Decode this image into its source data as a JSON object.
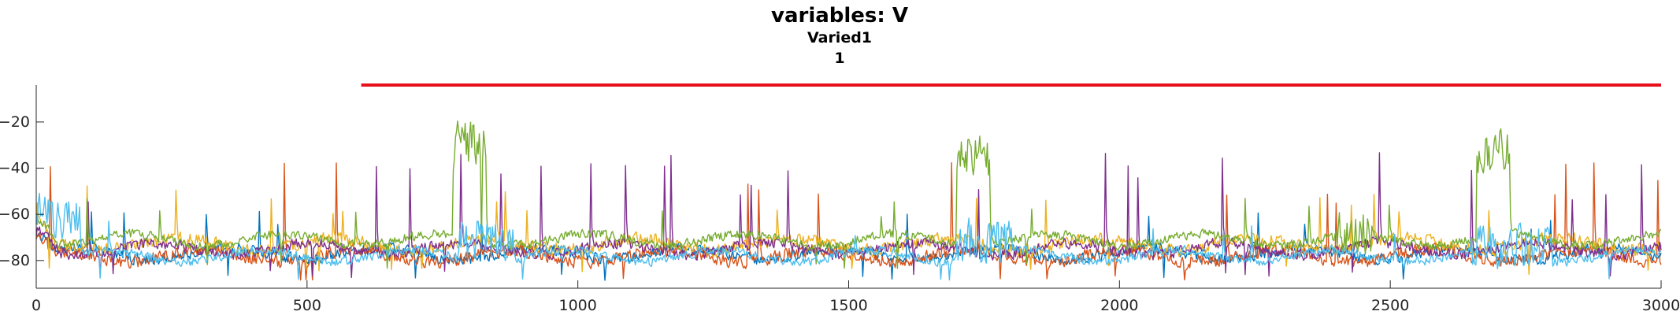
{
  "chart_data": {
    "type": "line",
    "title": "variables: V",
    "subtitle": "Varied1",
    "subtitle2": "1",
    "xlabel": "",
    "ylabel": "",
    "xlim": [
      0,
      3000
    ],
    "ylim": [
      -92,
      -4
    ],
    "x_ticks": [
      0,
      500,
      1000,
      1500,
      2000,
      2500,
      3000
    ],
    "x_tick_labels": [
      "0",
      "500",
      "1000",
      "1500",
      "2000",
      "2500",
      "3000"
    ],
    "y_ticks": [
      -80,
      -60,
      -40,
      -20
    ],
    "y_tick_labels": [
      "−80",
      "−60",
      "−40",
      "−20"
    ],
    "grid": false,
    "legend": "none",
    "reference_line": {
      "x_start": 600,
      "x_end": 3000,
      "y": -4,
      "color": "#e8111b"
    },
    "series": [
      {
        "color": "#0072BD",
        "base": -77,
        "noise": 3.0,
        "spike_rate": 0.006,
        "spike_amp": 30
      },
      {
        "color": "#D95319",
        "base": -78,
        "noise": 3.5,
        "spike_rate": 0.012,
        "spike_amp": 55
      },
      {
        "color": "#EDB120",
        "base": -73,
        "noise": 3.5,
        "spike_rate": 0.01,
        "spike_amp": 35
      },
      {
        "color": "#7E2F8E",
        "base": -75,
        "noise": 3.0,
        "spike_rate": 0.012,
        "spike_amp": 55
      },
      {
        "color": "#77AC30",
        "base": -71,
        "noise": 2.5,
        "spike_rate": 0.006,
        "spike_amp": 25,
        "bursts": [
          [
            770,
            830,
            -30
          ],
          [
            1700,
            1760,
            -35
          ],
          [
            2660,
            2720,
            -33
          ],
          [
            2400,
            2470,
            -68
          ]
        ]
      },
      {
        "color": "#4DBEEE",
        "base": -78,
        "noise": 2.5,
        "spike_rate": 0.004,
        "spike_amp": 20,
        "bursts": [
          [
            0,
            80,
            -60
          ],
          [
            780,
            880,
            -72
          ],
          [
            1700,
            1800,
            -72
          ],
          [
            2650,
            2800,
            -74
          ]
        ]
      }
    ]
  }
}
